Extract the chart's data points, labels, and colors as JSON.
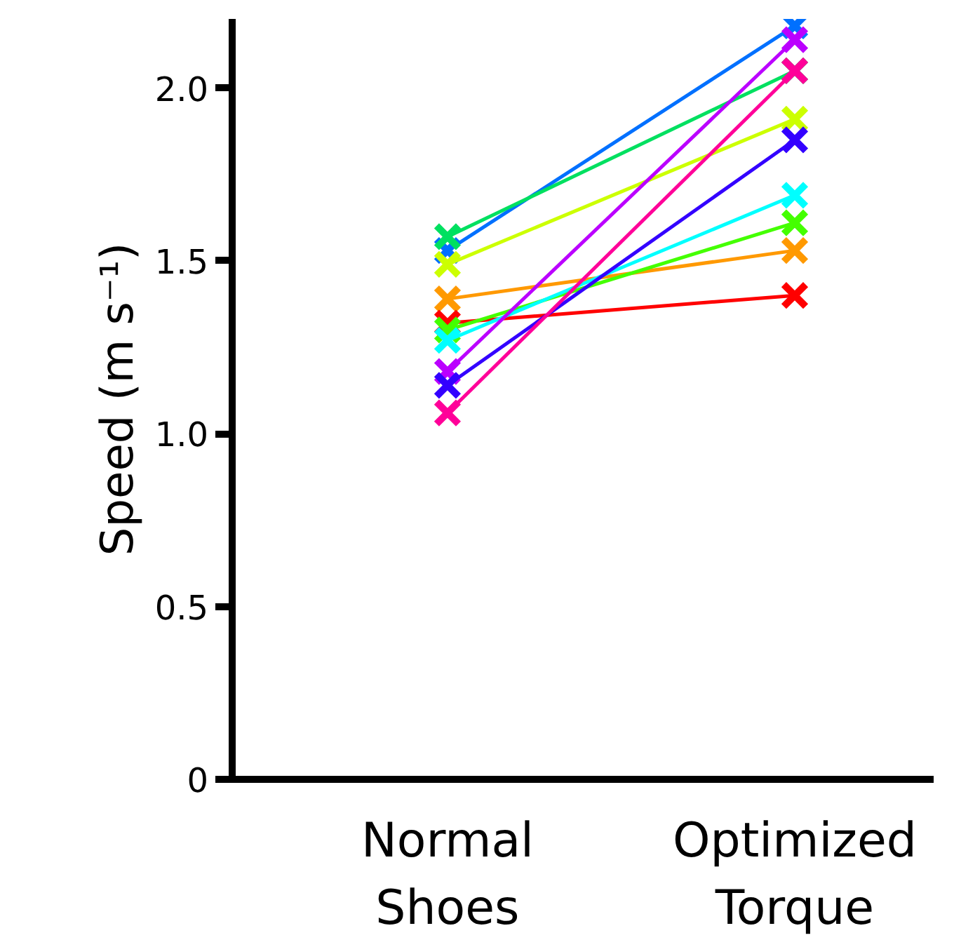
{
  "chart_data": {
    "type": "line",
    "ylabel": "Speed (m s⁻¹)",
    "categories": [
      "Normal Shoes",
      "Optimized Torque"
    ],
    "ylim": [
      0,
      2.2
    ],
    "yticks": [
      0,
      0.5,
      {
        "value": 1,
        "label": "1.0"
      },
      1.5,
      {
        "value": 2,
        "label": "2.0"
      }
    ],
    "grid": false,
    "marker": "cross",
    "line_style": "solid",
    "series": [
      {
        "color": "#0070ff",
        "values": [
          1.53,
          2.18
        ]
      },
      {
        "color": "#00e060",
        "values": [
          1.57,
          2.05
        ]
      },
      {
        "color": "#ccff00",
        "values": [
          1.49,
          1.91
        ]
      },
      {
        "color": "#ff9900",
        "values": [
          1.39,
          1.53
        ]
      },
      {
        "color": "#ff0000",
        "values": [
          1.32,
          1.4
        ]
      },
      {
        "color": "#44ff00",
        "values": [
          1.3,
          1.61
        ]
      },
      {
        "color": "#00ffff",
        "values": [
          1.27,
          1.69
        ]
      },
      {
        "color": "#bb00ff",
        "values": [
          1.18,
          2.14
        ]
      },
      {
        "color": "#3300ff",
        "values": [
          1.14,
          1.85
        ]
      },
      {
        "color": "#ff0099",
        "values": [
          1.06,
          2.05
        ]
      }
    ]
  }
}
